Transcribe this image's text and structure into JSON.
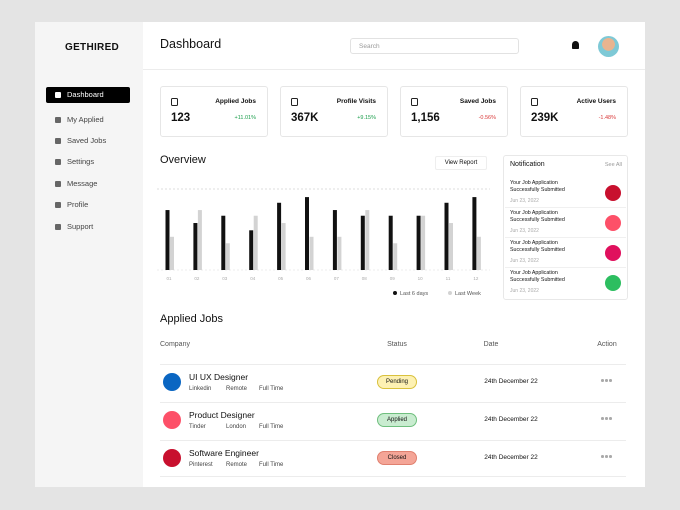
{
  "brand": "GETHIRED",
  "sidebar": [
    "Dashboard",
    "My Applied",
    "Saved Jobs",
    "Settings",
    "Message",
    "Profile",
    "Support"
  ],
  "header": {
    "title": "Dashboard",
    "search_placeholder": "Search"
  },
  "stats": [
    {
      "label": "Applied Jobs",
      "value": "123",
      "change": "+11.01%"
    },
    {
      "label": "Profile Visits",
      "value": "367K",
      "change": "+9.15%"
    },
    {
      "label": "Saved Jobs",
      "value": "1,156",
      "change": "-0.56%"
    },
    {
      "label": "Active Users",
      "value": "239K",
      "change": "-1.48%"
    }
  ],
  "overview": {
    "title": "Overview",
    "button": "View Report"
  },
  "chart_data": {
    "type": "bar",
    "categories": [
      "01",
      "02",
      "03",
      "04",
      "05",
      "06",
      "07",
      "08",
      "09",
      "10",
      "11",
      "12"
    ],
    "series": [
      {
        "name": "Last 6 days",
        "color": "#111111",
        "values": [
          74,
          58,
          67,
          49,
          83,
          90,
          74,
          67,
          67,
          67,
          83,
          90
        ]
      },
      {
        "name": "Last Week",
        "color": "#d3d3d3",
        "values": [
          41,
          74,
          33,
          67,
          58,
          41,
          41,
          74,
          33,
          67,
          58,
          41
        ]
      }
    ],
    "ylim": [
      0,
      100
    ]
  },
  "notifications": {
    "title": "Notification",
    "see_all": "See All",
    "items": [
      {
        "text": "Your Job Application Successfully Submitted",
        "date": "Jun 23, 2022"
      },
      {
        "text": "Your Job Application Successfully Submitted",
        "date": "Jun 23, 2022"
      },
      {
        "text": "Your Job Application Successfully Submitted",
        "date": "Jun 23, 2022"
      },
      {
        "text": "Your Job Application Successfully Submitted",
        "date": "Jun 23, 2022"
      }
    ]
  },
  "applied_jobs": {
    "title": "Applied Jobs",
    "columns": [
      "Company",
      "Status",
      "Date",
      "Action"
    ],
    "rows": [
      {
        "title": "UI UX Designer",
        "company": "Linkedin",
        "location": "Remote",
        "type": "Full Time",
        "status": "Pending",
        "date": "24th December 22"
      },
      {
        "title": "Product Designer",
        "company": "Tinder",
        "location": "London",
        "type": "Full Time",
        "status": "Applied",
        "date": "24th December 22"
      },
      {
        "title": "Software Engineer",
        "company": "Pinterest",
        "location": "Remote",
        "type": "Full Time",
        "status": "Closed",
        "date": "24th December 22"
      }
    ]
  }
}
